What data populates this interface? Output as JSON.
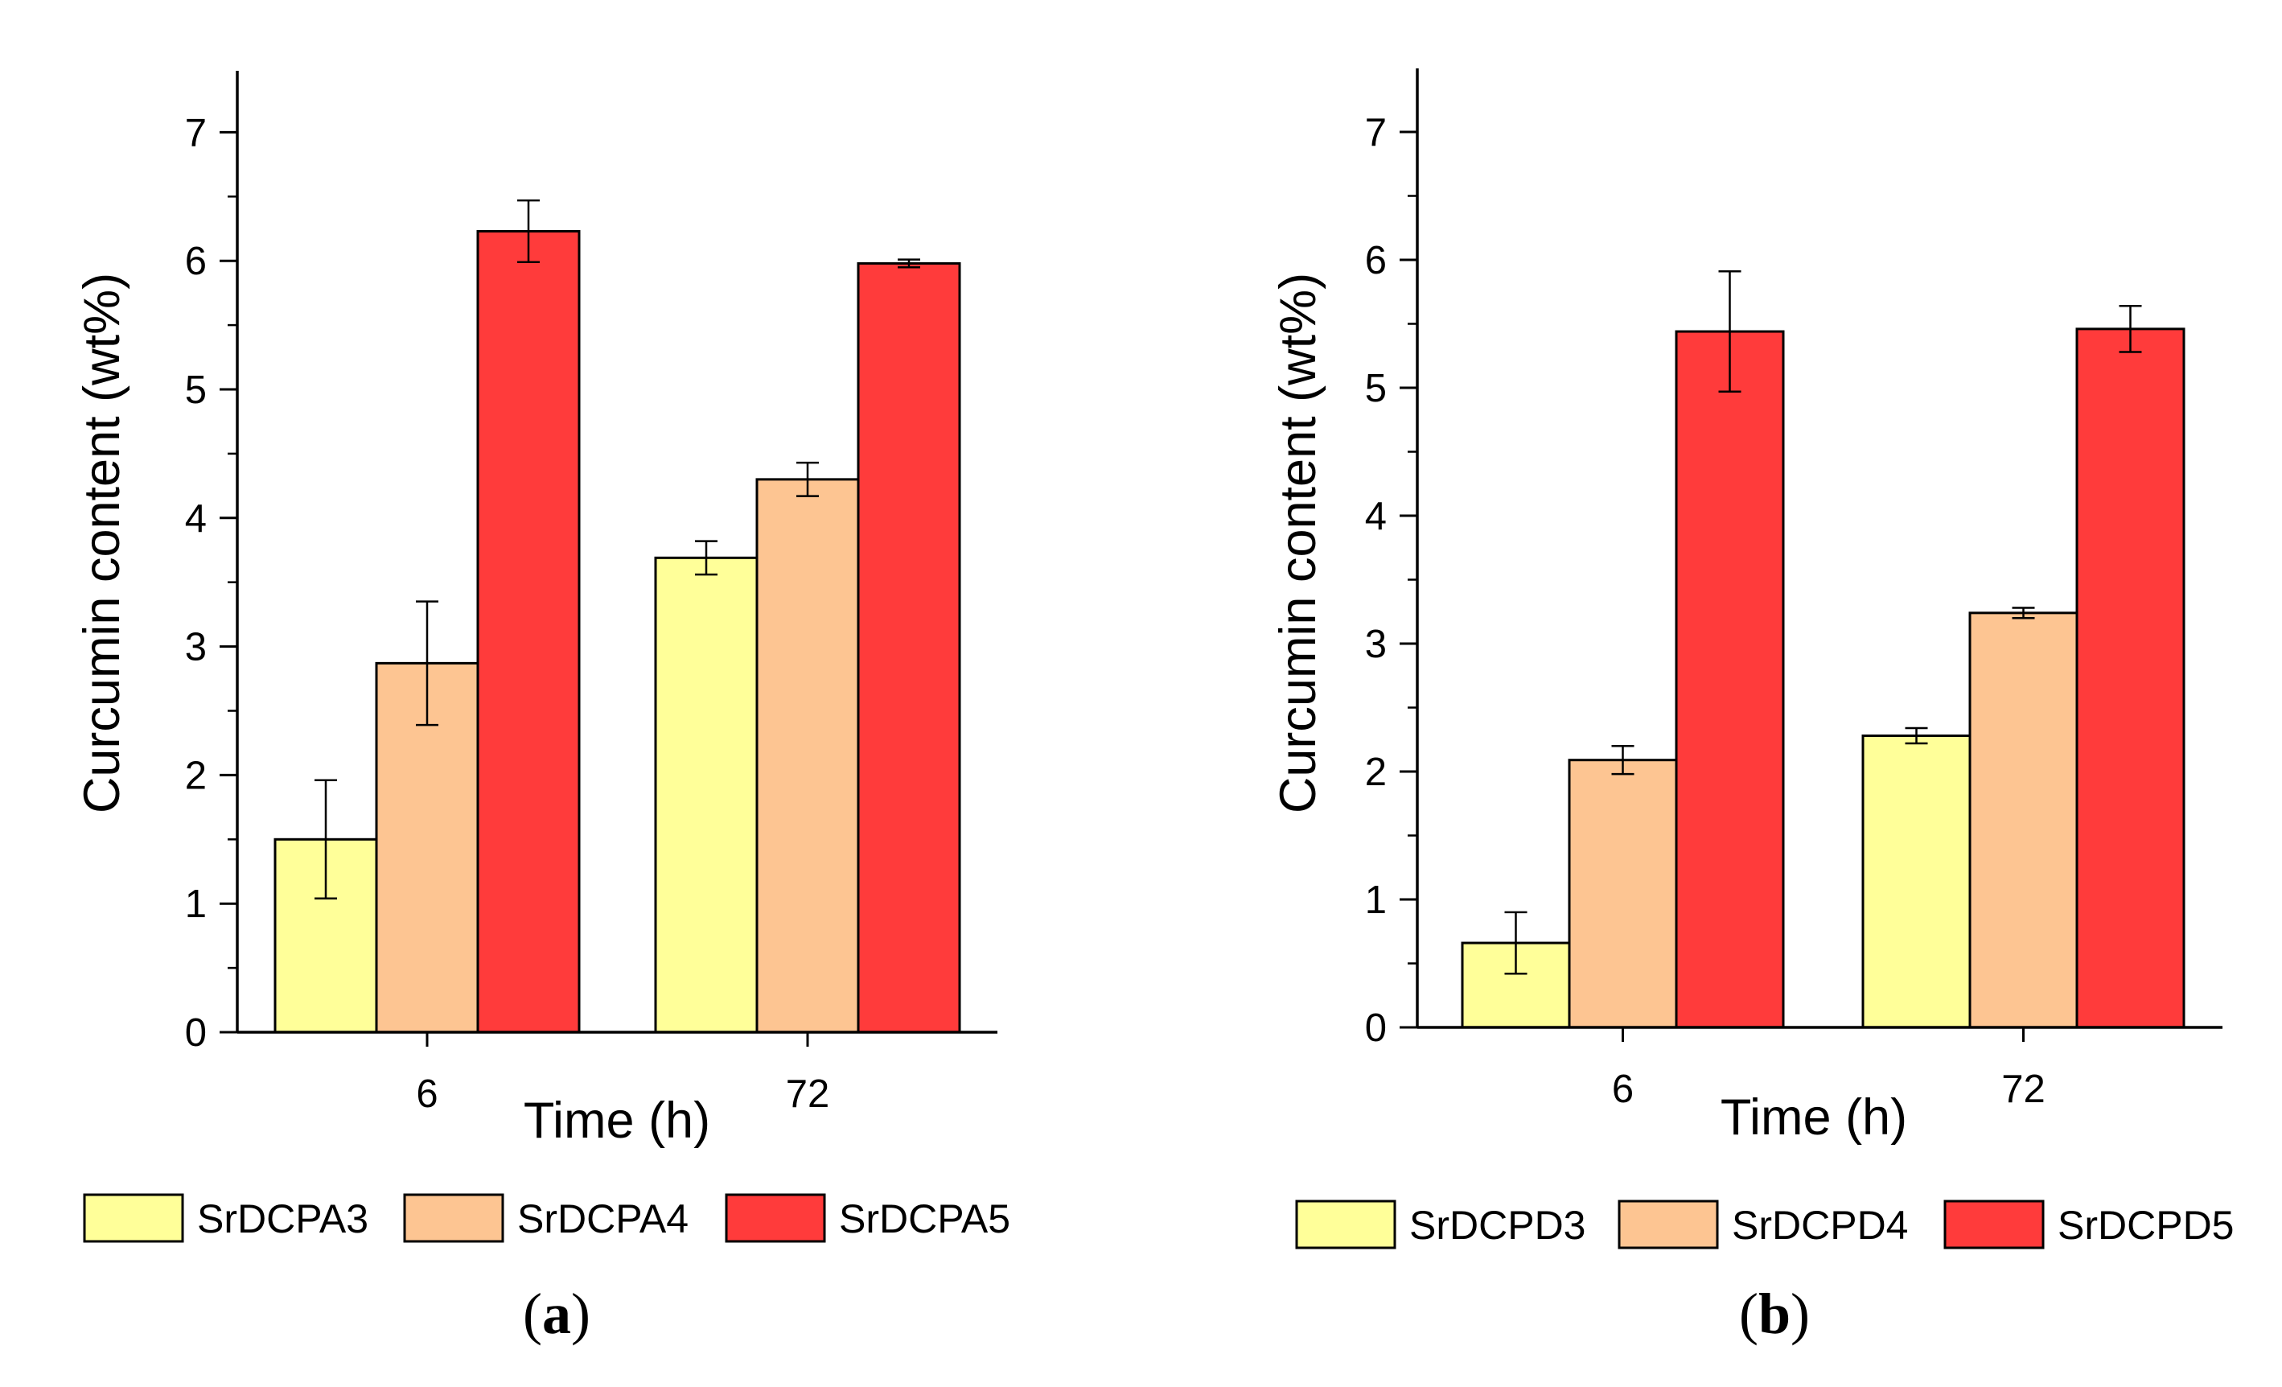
{
  "chart_data": [
    {
      "type": "bar",
      "panel_label": "a",
      "title": "",
      "xlabel": "Time (h)",
      "ylabel": "Curcumin content (wt%)",
      "categories": [
        "6",
        "72"
      ],
      "ylim": [
        0,
        7.5
      ],
      "yticks": [
        "0",
        "1",
        "2",
        "3",
        "4",
        "5",
        "6",
        "7"
      ],
      "grid": false,
      "legend_position": "bottom",
      "series": [
        {
          "name": "SrDCPA3",
          "color": "#ffff99",
          "values": [
            1.5,
            3.69
          ],
          "errors": [
            0.46,
            0.13
          ]
        },
        {
          "name": "SrDCPA4",
          "color": "#fdc592",
          "values": [
            2.87,
            4.3
          ],
          "errors": [
            0.48,
            0.13
          ]
        },
        {
          "name": "SrDCPA5",
          "color": "#ff3b3b",
          "values": [
            6.23,
            5.98
          ],
          "errors": [
            0.24,
            0.03
          ]
        }
      ]
    },
    {
      "type": "bar",
      "panel_label": "b",
      "title": "",
      "xlabel": "Time (h)",
      "ylabel": "Curcumin content (wt%)",
      "categories": [
        "6",
        "72"
      ],
      "ylim": [
        0,
        7.5
      ],
      "yticks": [
        "0",
        "1",
        "2",
        "3",
        "4",
        "5",
        "6",
        "7"
      ],
      "grid": false,
      "legend_position": "bottom",
      "series": [
        {
          "name": "SrDCPD3",
          "color": "#ffff99",
          "values": [
            0.66,
            2.28
          ],
          "errors": [
            0.24,
            0.06
          ]
        },
        {
          "name": "SrDCPD4",
          "color": "#fdc592",
          "values": [
            2.09,
            3.24
          ],
          "errors": [
            0.11,
            0.04
          ]
        },
        {
          "name": "SrDCPD5",
          "color": "#ff3b3b",
          "values": [
            5.44,
            5.46
          ],
          "errors": [
            0.47,
            0.18
          ]
        }
      ]
    }
  ]
}
